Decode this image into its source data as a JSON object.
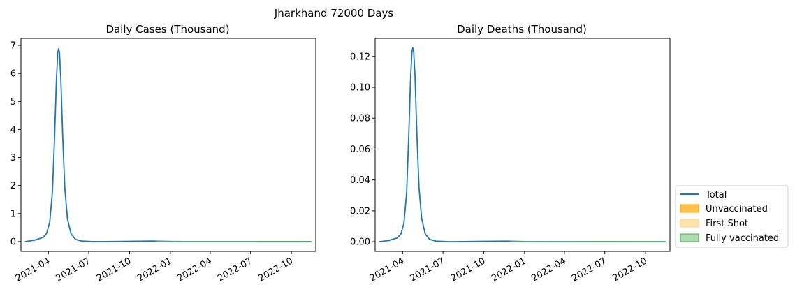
{
  "figure": {
    "suptitle": "Jharkhand 72000 Days"
  },
  "legend": {
    "placement": "lower-right-outside",
    "entries": [
      {
        "label": "Total",
        "kind": "line",
        "color": "#1f77b4"
      },
      {
        "label": "Unvaccinated",
        "kind": "patch",
        "color": "#ffa500",
        "alpha": 0.7
      },
      {
        "label": "First Shot",
        "kind": "patch",
        "color": "#ffd27f",
        "alpha": 0.6
      },
      {
        "label": "Fully vaccinated",
        "kind": "patch",
        "color": "#4caf50",
        "alpha": 0.45
      }
    ]
  },
  "chart_data": [
    {
      "type": "line",
      "title": "Daily Cases (Thousand)",
      "xlabel": "",
      "ylabel": "",
      "x_type": "date",
      "xlim": [
        "2021-01-29",
        "2022-11-25"
      ],
      "ylim": [
        -0.35,
        7.25
      ],
      "xticks": [
        "2021-04",
        "2021-07",
        "2021-10",
        "2022-01",
        "2022-04",
        "2022-07",
        "2022-10"
      ],
      "yticks": [
        0,
        1,
        2,
        3,
        4,
        5,
        6,
        7
      ],
      "ytick_labels": [
        "0",
        "1",
        "2",
        "3",
        "4",
        "5",
        "6",
        "7"
      ],
      "grid": false,
      "series": [
        {
          "name": "Total",
          "color": "#1f77b4",
          "points": [
            [
              "2021-02-07",
              0.0
            ],
            [
              "2021-03-01",
              0.05
            ],
            [
              "2021-03-20",
              0.15
            ],
            [
              "2021-03-28",
              0.3
            ],
            [
              "2021-04-04",
              0.7
            ],
            [
              "2021-04-10",
              1.8
            ],
            [
              "2021-04-15",
              3.8
            ],
            [
              "2021-04-19",
              5.8
            ],
            [
              "2021-04-22",
              6.75
            ],
            [
              "2021-04-24",
              6.88
            ],
            [
              "2021-04-26",
              6.75
            ],
            [
              "2021-04-29",
              5.8
            ],
            [
              "2021-05-03",
              3.8
            ],
            [
              "2021-05-08",
              1.9
            ],
            [
              "2021-05-14",
              0.8
            ],
            [
              "2021-05-22",
              0.28
            ],
            [
              "2021-06-01",
              0.08
            ],
            [
              "2021-06-15",
              0.02
            ],
            [
              "2021-07-15",
              0.0
            ],
            [
              "2021-09-15",
              0.01
            ],
            [
              "2021-11-20",
              0.02
            ],
            [
              "2022-01-20",
              0.0
            ],
            [
              "2022-06-01",
              0.0
            ],
            [
              "2022-11-15",
              0.0
            ]
          ]
        },
        {
          "name": "Fully vaccinated",
          "color": "#4caf50",
          "points": [
            [
              "2021-12-01",
              0.01
            ],
            [
              "2022-02-01",
              0.006
            ],
            [
              "2022-06-01",
              0.002
            ],
            [
              "2022-11-15",
              0.0
            ]
          ]
        }
      ]
    },
    {
      "type": "line",
      "title": "Daily Deaths (Thousand)",
      "xlabel": "",
      "ylabel": "",
      "x_type": "date",
      "xlim": [
        "2021-01-29",
        "2022-11-25"
      ],
      "ylim": [
        -0.00627,
        0.13167
      ],
      "xticks": [
        "2021-04",
        "2021-07",
        "2021-10",
        "2022-01",
        "2022-04",
        "2022-07",
        "2022-10"
      ],
      "yticks": [
        0,
        0.02,
        0.04,
        0.06,
        0.08,
        0.1,
        0.12
      ],
      "ytick_labels": [
        "0.00",
        "0.02",
        "0.04",
        "0.06",
        "0.08",
        "0.10",
        "0.12"
      ],
      "grid": false,
      "series": [
        {
          "name": "Total",
          "color": "#1f77b4",
          "points": [
            [
              "2021-02-07",
              0.0
            ],
            [
              "2021-03-01",
              0.0008
            ],
            [
              "2021-03-20",
              0.0025
            ],
            [
              "2021-03-28",
              0.005
            ],
            [
              "2021-04-04",
              0.012
            ],
            [
              "2021-04-10",
              0.032
            ],
            [
              "2021-04-15",
              0.07
            ],
            [
              "2021-04-19",
              0.107
            ],
            [
              "2021-04-22",
              0.123
            ],
            [
              "2021-04-24",
              0.1255
            ],
            [
              "2021-04-26",
              0.123
            ],
            [
              "2021-04-29",
              0.107
            ],
            [
              "2021-05-03",
              0.07
            ],
            [
              "2021-05-08",
              0.035
            ],
            [
              "2021-05-14",
              0.015
            ],
            [
              "2021-05-22",
              0.005
            ],
            [
              "2021-06-01",
              0.0015
            ],
            [
              "2021-06-15",
              0.0004
            ],
            [
              "2021-07-15",
              0.0
            ],
            [
              "2021-09-15",
              0.0002
            ],
            [
              "2021-11-20",
              0.0004
            ],
            [
              "2022-01-20",
              0.0
            ],
            [
              "2022-06-01",
              0.0
            ],
            [
              "2022-11-15",
              0.0
            ]
          ]
        },
        {
          "name": "Fully vaccinated",
          "color": "#4caf50",
          "points": [
            [
              "2021-12-01",
              0.0002
            ],
            [
              "2022-02-01",
              0.0001
            ],
            [
              "2022-06-01",
              5e-05
            ],
            [
              "2022-11-15",
              0.0
            ]
          ]
        }
      ]
    }
  ]
}
